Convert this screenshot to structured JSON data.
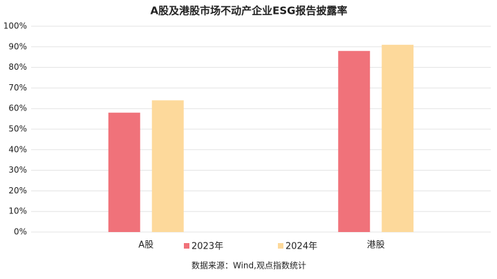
{
  "chart_data": {
    "type": "bar",
    "title": "A股及港股市场不动产企业ESG报告披露率",
    "categories": [
      "A股",
      "港股"
    ],
    "series": [
      {
        "name": "2023年",
        "color": "#f0727a",
        "values": [
          58,
          88
        ]
      },
      {
        "name": "2024年",
        "color": "#fdd99b",
        "values": [
          64,
          91
        ]
      }
    ],
    "ylim": [
      0,
      100
    ],
    "yticks": [
      {
        "value": 0,
        "label": "0%"
      },
      {
        "value": 10,
        "label": "10%"
      },
      {
        "value": 20,
        "label": "20%"
      },
      {
        "value": 30,
        "label": "30%"
      },
      {
        "value": 40,
        "label": "40%"
      },
      {
        "value": 50,
        "label": "50%"
      },
      {
        "value": 60,
        "label": "60%"
      },
      {
        "value": 70,
        "label": "70%"
      },
      {
        "value": 80,
        "label": "80%"
      },
      {
        "value": 90,
        "label": "90%"
      },
      {
        "value": 100,
        "label": "100%"
      }
    ],
    "grid": true,
    "legend": "bottom",
    "source": "数据来源：Wind,观点指数统计"
  }
}
